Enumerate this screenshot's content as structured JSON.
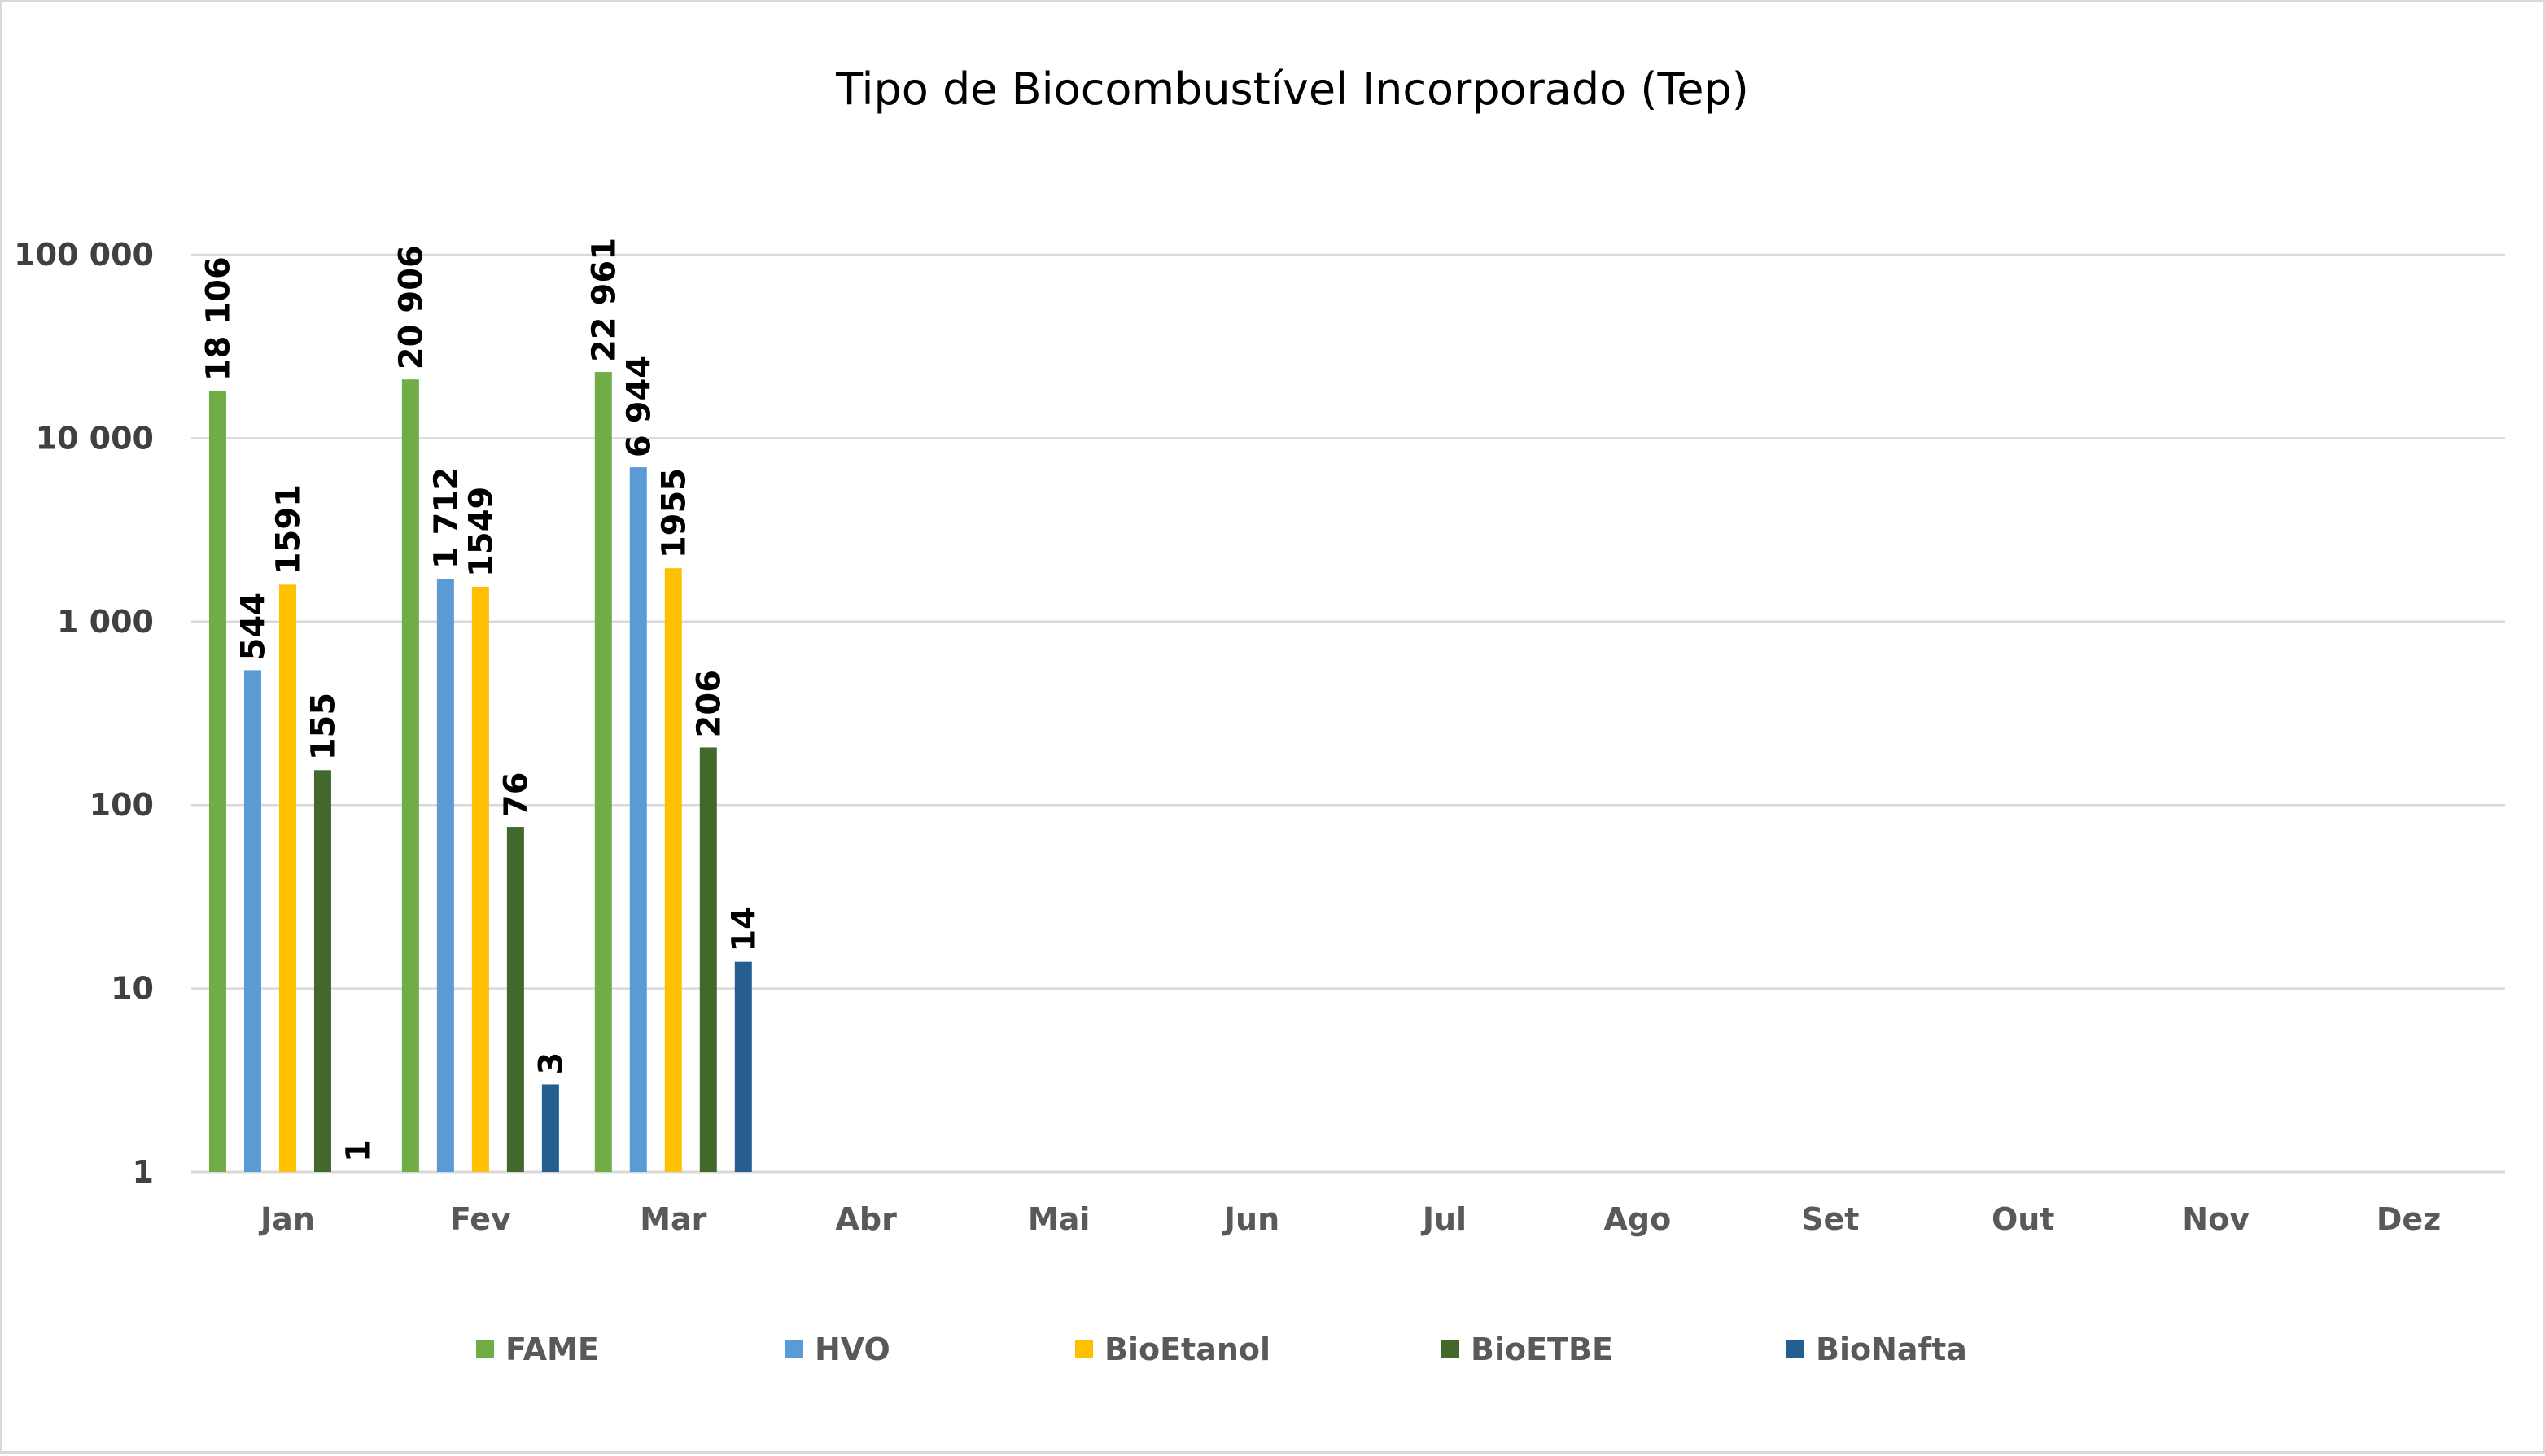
{
  "chart_data": {
    "type": "bar",
    "title": "Tipo de Biocombustível Incorporado (Tep)",
    "xlabel": "",
    "ylabel": "",
    "yscale": "log",
    "ylim": [
      1,
      100000
    ],
    "yticks": [
      1,
      10,
      100,
      1000,
      10000,
      100000
    ],
    "ytick_labels": [
      "1",
      "10",
      "100",
      "1 000",
      "10 000",
      "100 000"
    ],
    "grid": true,
    "legend": "bottom",
    "categories": [
      "Jan",
      "Fev",
      "Mar",
      "Abr",
      "Mai",
      "Jun",
      "Jul",
      "Ago",
      "Set",
      "Out",
      "Nov",
      "Dez"
    ],
    "series": [
      {
        "name": "FAME",
        "color": "#70ad47",
        "values": [
          18106,
          20906,
          22961,
          null,
          null,
          null,
          null,
          null,
          null,
          null,
          null,
          null
        ],
        "labels": [
          "18 106",
          "20 906",
          "22 961"
        ]
      },
      {
        "name": "HVO",
        "color": "#5b9bd5",
        "values": [
          544,
          1712,
          6944,
          null,
          null,
          null,
          null,
          null,
          null,
          null,
          null,
          null
        ],
        "labels": [
          "544",
          "1 712",
          "6 944"
        ]
      },
      {
        "name": "BioEtanol",
        "color": "#ffc000",
        "values": [
          1591,
          1549,
          1955,
          null,
          null,
          null,
          null,
          null,
          null,
          null,
          null,
          null
        ],
        "labels": [
          "1591",
          "1549",
          "1955"
        ]
      },
      {
        "name": "BioETBE",
        "color": "#43682b",
        "values": [
          155,
          76,
          206,
          null,
          null,
          null,
          null,
          null,
          null,
          null,
          null,
          null
        ],
        "labels": [
          "155",
          "76",
          "206"
        ]
      },
      {
        "name": "BioNafta",
        "color": "#255e91",
        "values": [
          1,
          3,
          14,
          null,
          null,
          null,
          null,
          null,
          null,
          null,
          null,
          null
        ],
        "labels": [
          "1",
          "3",
          "14"
        ]
      }
    ]
  }
}
